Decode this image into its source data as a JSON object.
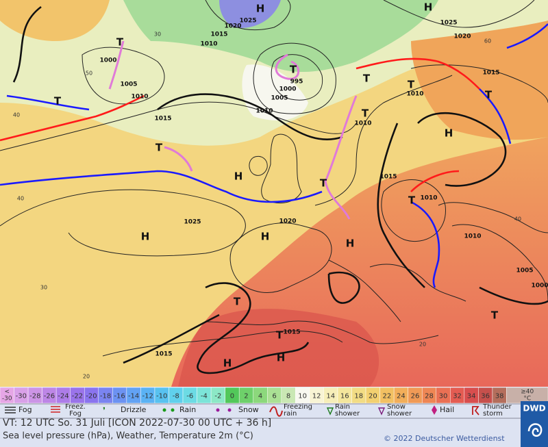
{
  "map": {
    "labels": [
      "H",
      "1025",
      "1020",
      "1015",
      "1010",
      "1000",
      "T",
      "1005",
      "1010",
      "T",
      "T",
      "995",
      "1000",
      "1005",
      "1010",
      "1015",
      "T",
      "H",
      "1025",
      "H",
      "H",
      "1020",
      "T",
      "H",
      "T",
      "1015",
      "T",
      "H",
      "H",
      "1015",
      "H",
      "T",
      "1015",
      "1010",
      "T",
      "T",
      "1010",
      "T",
      "1015",
      "T",
      "1010",
      "1010",
      "1005",
      "1000",
      "T",
      "H",
      "1025",
      "1020"
    ],
    "grid_labels": [
      50,
      40,
      40,
      30,
      20,
      60,
      40,
      20,
      30
    ]
  },
  "scale": {
    "below": {
      "symbol": "<",
      "value": -30,
      "color": "#e6a6e6"
    },
    "steps": [
      {
        "value": -30,
        "color": "#d9a0e8"
      },
      {
        "value": -28,
        "color": "#cc94e6"
      },
      {
        "value": -26,
        "color": "#bd86e6"
      },
      {
        "value": -24,
        "color": "#ad7ce8"
      },
      {
        "value": -22,
        "color": "#9a74ea"
      },
      {
        "value": -20,
        "color": "#8a74ee"
      },
      {
        "value": -18,
        "color": "#7a84f0"
      },
      {
        "value": -16,
        "color": "#6c92f2"
      },
      {
        "value": -14,
        "color": "#62a2f4"
      },
      {
        "value": -12,
        "color": "#5ab2f4"
      },
      {
        "value": -10,
        "color": "#58c2f0"
      },
      {
        "value": -8,
        "color": "#60d0ec"
      },
      {
        "value": -6,
        "color": "#6cdbe4"
      },
      {
        "value": -4,
        "color": "#7ce4d8"
      },
      {
        "value": -2,
        "color": "#8ce8c6"
      },
      {
        "value": 0,
        "color": "#52c85a"
      },
      {
        "value": 2,
        "color": "#6ed06a"
      },
      {
        "value": 4,
        "color": "#8cd87c"
      },
      {
        "value": 6,
        "color": "#aae094"
      },
      {
        "value": 8,
        "color": "#cae8b4"
      },
      {
        "value": 10,
        "color": "#f8f8f0"
      },
      {
        "value": 12,
        "color": "#f8f4d4"
      },
      {
        "value": 14,
        "color": "#f6eeb8"
      },
      {
        "value": 16,
        "color": "#f4e69c"
      },
      {
        "value": 18,
        "color": "#f2dc84"
      },
      {
        "value": 20,
        "color": "#f2d070"
      },
      {
        "value": 22,
        "color": "#f2c062"
      },
      {
        "value": 24,
        "color": "#f2ae5a"
      },
      {
        "value": 26,
        "color": "#f09a56"
      },
      {
        "value": 28,
        "color": "#ee8654"
      },
      {
        "value": 30,
        "color": "#ea7054"
      },
      {
        "value": 32,
        "color": "#e45c52"
      },
      {
        "value": 34,
        "color": "#d84e4e"
      },
      {
        "value": 36,
        "color": "#c6504c"
      },
      {
        "value": 38,
        "color": "#b46e5c"
      }
    ],
    "above": {
      "symbol": "≥40",
      "unit": "°C",
      "color": "#c8b0a8"
    }
  },
  "legend": [
    {
      "label": [
        "Fog"
      ]
    },
    {
      "label": [
        "Freez.",
        "Fog"
      ]
    },
    {
      "label": [
        "Drizzle"
      ]
    },
    {
      "label": [
        "Rain"
      ]
    },
    {
      "label": [
        "Snow"
      ]
    },
    {
      "label": [
        "Freezing",
        "rain"
      ]
    },
    {
      "label": [
        "Rain",
        "shower"
      ]
    },
    {
      "label": [
        "Snow",
        "shower"
      ]
    },
    {
      "label": [
        "Hail"
      ]
    },
    {
      "label": [
        "Thunder",
        "storm"
      ]
    }
  ],
  "footer": {
    "valid_time": "VT: 12 UTC So.  31 Juli [ICON 2022-07-30  00 UTC + 36 h]",
    "description": "Sea level pressure (hPa), Weather, Temperature 2m (°C)",
    "copyright": "© 2022 Deutscher Wetterdienst",
    "logo": "DWD"
  }
}
